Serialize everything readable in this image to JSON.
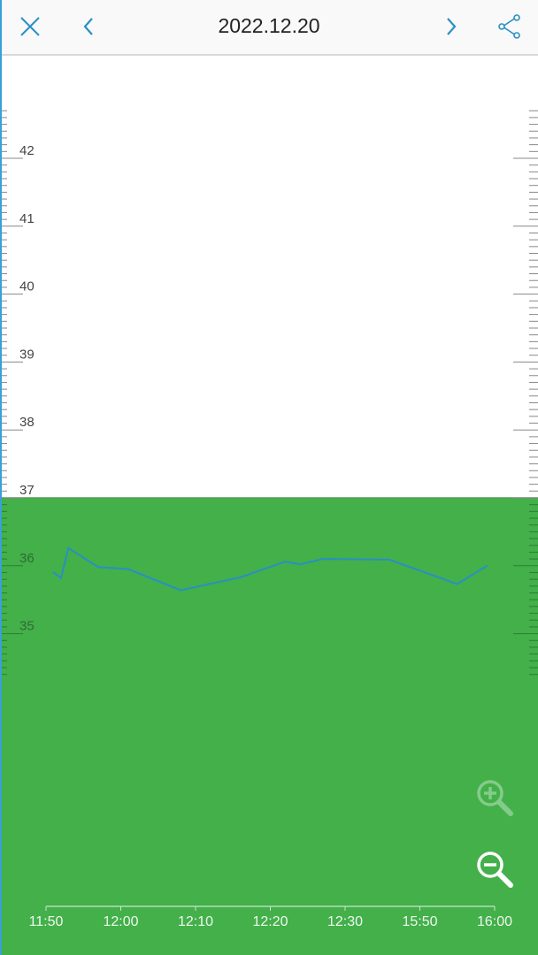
{
  "header": {
    "title": "2022.12.20",
    "close_icon": "close-icon",
    "prev_icon": "chevron-left-icon",
    "next_icon": "chevron-right-icon",
    "share_icon": "share-icon"
  },
  "colors": {
    "accent": "#2a8fc4",
    "band": "#43b04a",
    "line": "#2a8fc4"
  },
  "zoom": {
    "zoom_in_icon": "zoom-in-icon",
    "zoom_in_enabled": false,
    "zoom_out_icon": "zoom-out-icon",
    "zoom_out_enabled": true
  },
  "chart_data": {
    "type": "line",
    "ylim": [
      34.4,
      42.7
    ],
    "yticks": [
      "42",
      "41",
      "40",
      "39",
      "38",
      "37",
      "36",
      "35"
    ],
    "xticks": [
      "11:50",
      "12:00",
      "12:10",
      "12:20",
      "12:30",
      "15:50",
      "16:00"
    ],
    "band": {
      "from": 0,
      "to": 37
    },
    "grid": false,
    "points": [
      {
        "x": "11:51",
        "y": 35.9
      },
      {
        "x": "11:52",
        "y": 35.82
      },
      {
        "x": "11:53",
        "y": 36.26
      },
      {
        "x": "11:57",
        "y": 35.98
      },
      {
        "x": "12:01",
        "y": 35.95
      },
      {
        "x": "12:08",
        "y": 35.64
      },
      {
        "x": "12:16",
        "y": 35.83
      },
      {
        "x": "12:22",
        "y": 36.06
      },
      {
        "x": "12:24",
        "y": 36.02
      },
      {
        "x": "12:27",
        "y": 36.1
      },
      {
        "x": "14:28",
        "y": 36.09
      },
      {
        "x": "15:55",
        "y": 35.73
      },
      {
        "x": "15:59",
        "y": 36.0
      }
    ]
  }
}
